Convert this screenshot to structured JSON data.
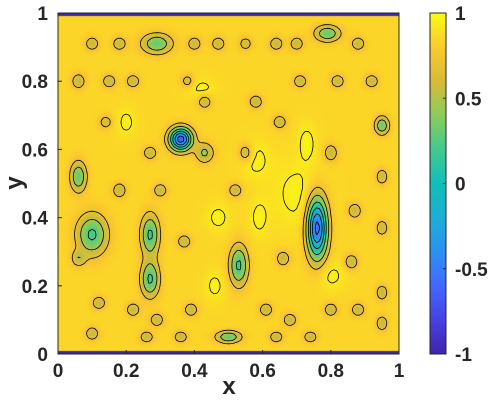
{
  "chart_data": {
    "type": "heatmap",
    "title": "",
    "xlabel": "x",
    "ylabel": "y",
    "xlim": [
      0,
      1
    ],
    "ylim": [
      0,
      1
    ],
    "xticks": [
      "0",
      "0.2",
      "0.4",
      "0.6",
      "0.8",
      "1"
    ],
    "yticks": [
      "0",
      "0.2",
      "0.4",
      "0.6",
      "0.8",
      "1"
    ],
    "colorbar": {
      "range": [
        -1,
        1
      ],
      "ticks": [
        "1",
        "0.5",
        "0",
        "-0.5",
        "-1"
      ],
      "colormap": "parula"
    },
    "background_level": 0.85,
    "contour_levels": [
      -0.75,
      -0.5,
      -0.25,
      0.0,
      0.25,
      0.5,
      0.7,
      0.93
    ],
    "boundary_value": -1,
    "features": [
      {
        "x": 0.1,
        "y": 0.91,
        "value": 0.55,
        "sx": 0.014,
        "sy": 0.014
      },
      {
        "x": 0.18,
        "y": 0.91,
        "value": 0.55,
        "sx": 0.014,
        "sy": 0.014
      },
      {
        "x": 0.29,
        "y": 0.91,
        "value": 0.3,
        "sx": 0.03,
        "sy": 0.02
      },
      {
        "x": 0.4,
        "y": 0.91,
        "value": 0.55,
        "sx": 0.014,
        "sy": 0.014
      },
      {
        "x": 0.47,
        "y": 0.91,
        "value": 0.55,
        "sx": 0.014,
        "sy": 0.014
      },
      {
        "x": 0.55,
        "y": 0.91,
        "value": 0.6,
        "sx": 0.014,
        "sy": 0.014
      },
      {
        "x": 0.64,
        "y": 0.91,
        "value": 0.55,
        "sx": 0.014,
        "sy": 0.014
      },
      {
        "x": 0.7,
        "y": 0.91,
        "value": 0.55,
        "sx": 0.014,
        "sy": 0.014
      },
      {
        "x": 0.79,
        "y": 0.94,
        "value": 0.3,
        "sx": 0.025,
        "sy": 0.016
      },
      {
        "x": 0.88,
        "y": 0.91,
        "value": 0.55,
        "sx": 0.014,
        "sy": 0.014
      },
      {
        "x": 0.06,
        "y": 0.8,
        "value": 0.55,
        "sx": 0.014,
        "sy": 0.016
      },
      {
        "x": 0.15,
        "y": 0.8,
        "value": 0.55,
        "sx": 0.014,
        "sy": 0.014
      },
      {
        "x": 0.22,
        "y": 0.8,
        "value": 0.55,
        "sx": 0.014,
        "sy": 0.014
      },
      {
        "x": 0.38,
        "y": 0.8,
        "value": 0.6,
        "sx": 0.014,
        "sy": 0.014
      },
      {
        "x": 0.71,
        "y": 0.8,
        "value": 0.55,
        "sx": 0.014,
        "sy": 0.014
      },
      {
        "x": 0.82,
        "y": 0.8,
        "value": 0.55,
        "sx": 0.014,
        "sy": 0.014
      },
      {
        "x": 0.92,
        "y": 0.8,
        "value": 0.55,
        "sx": 0.014,
        "sy": 0.014
      },
      {
        "x": 0.14,
        "y": 0.68,
        "value": 0.6,
        "sx": 0.014,
        "sy": 0.014
      },
      {
        "x": 0.43,
        "y": 0.74,
        "value": 0.55,
        "sx": 0.014,
        "sy": 0.014
      },
      {
        "x": 0.58,
        "y": 0.74,
        "value": 0.55,
        "sx": 0.014,
        "sy": 0.014
      },
      {
        "x": 0.65,
        "y": 0.68,
        "value": 0.55,
        "sx": 0.014,
        "sy": 0.014
      },
      {
        "x": 0.36,
        "y": 0.63,
        "value": -0.65,
        "sx": 0.022,
        "sy": 0.022
      },
      {
        "x": 0.43,
        "y": 0.59,
        "value": 0.45,
        "sx": 0.018,
        "sy": 0.02
      },
      {
        "x": 0.55,
        "y": 0.59,
        "value": 0.55,
        "sx": 0.014,
        "sy": 0.018
      },
      {
        "x": 0.27,
        "y": 0.59,
        "value": 0.55,
        "sx": 0.014,
        "sy": 0.014
      },
      {
        "x": 0.8,
        "y": 0.59,
        "value": 0.55,
        "sx": 0.014,
        "sy": 0.018
      },
      {
        "x": 0.06,
        "y": 0.52,
        "value": 0.3,
        "sx": 0.016,
        "sy": 0.03
      },
      {
        "x": 0.18,
        "y": 0.48,
        "value": 0.55,
        "sx": 0.014,
        "sy": 0.016
      },
      {
        "x": 0.3,
        "y": 0.48,
        "value": 0.55,
        "sx": 0.014,
        "sy": 0.014
      },
      {
        "x": 0.52,
        "y": 0.48,
        "value": 0.55,
        "sx": 0.014,
        "sy": 0.014
      },
      {
        "x": 0.87,
        "y": 0.42,
        "value": 0.55,
        "sx": 0.014,
        "sy": 0.016
      },
      {
        "x": 0.1,
        "y": 0.35,
        "value": 0.2,
        "sx": 0.03,
        "sy": 0.04
      },
      {
        "x": 0.27,
        "y": 0.35,
        "value": 0.2,
        "sx": 0.018,
        "sy": 0.04
      },
      {
        "x": 0.76,
        "y": 0.37,
        "value": -0.6,
        "sx": 0.02,
        "sy": 0.06
      },
      {
        "x": 0.37,
        "y": 0.33,
        "value": 0.55,
        "sx": 0.014,
        "sy": 0.014
      },
      {
        "x": 0.53,
        "y": 0.26,
        "value": 0.2,
        "sx": 0.018,
        "sy": 0.04
      },
      {
        "x": 0.27,
        "y": 0.22,
        "value": 0.2,
        "sx": 0.018,
        "sy": 0.035
      },
      {
        "x": 0.06,
        "y": 0.28,
        "value": 0.55,
        "sx": 0.014,
        "sy": 0.016
      },
      {
        "x": 0.66,
        "y": 0.28,
        "value": 0.55,
        "sx": 0.014,
        "sy": 0.016
      },
      {
        "x": 0.86,
        "y": 0.27,
        "value": 0.55,
        "sx": 0.014,
        "sy": 0.016
      },
      {
        "x": 0.95,
        "y": 0.67,
        "value": 0.3,
        "sx": 0.014,
        "sy": 0.018
      },
      {
        "x": 0.95,
        "y": 0.52,
        "value": 0.55,
        "sx": 0.012,
        "sy": 0.016
      },
      {
        "x": 0.95,
        "y": 0.37,
        "value": 0.55,
        "sx": 0.012,
        "sy": 0.016
      },
      {
        "x": 0.95,
        "y": 0.18,
        "value": 0.55,
        "sx": 0.012,
        "sy": 0.016
      },
      {
        "x": 0.95,
        "y": 0.09,
        "value": 0.55,
        "sx": 0.012,
        "sy": 0.016
      },
      {
        "x": 0.12,
        "y": 0.15,
        "value": 0.55,
        "sx": 0.014,
        "sy": 0.014
      },
      {
        "x": 0.22,
        "y": 0.13,
        "value": 0.55,
        "sx": 0.014,
        "sy": 0.014
      },
      {
        "x": 0.29,
        "y": 0.1,
        "value": 0.55,
        "sx": 0.014,
        "sy": 0.014
      },
      {
        "x": 0.39,
        "y": 0.13,
        "value": 0.55,
        "sx": 0.014,
        "sy": 0.014
      },
      {
        "x": 0.61,
        "y": 0.13,
        "value": 0.55,
        "sx": 0.014,
        "sy": 0.014
      },
      {
        "x": 0.68,
        "y": 0.1,
        "value": 0.55,
        "sx": 0.014,
        "sy": 0.014
      },
      {
        "x": 0.8,
        "y": 0.13,
        "value": 0.55,
        "sx": 0.014,
        "sy": 0.014
      },
      {
        "x": 0.88,
        "y": 0.13,
        "value": 0.55,
        "sx": 0.014,
        "sy": 0.014
      },
      {
        "x": 0.1,
        "y": 0.06,
        "value": 0.55,
        "sx": 0.014,
        "sy": 0.014
      },
      {
        "x": 0.26,
        "y": 0.05,
        "value": 0.55,
        "sx": 0.014,
        "sy": 0.012
      },
      {
        "x": 0.36,
        "y": 0.05,
        "value": 0.55,
        "sx": 0.014,
        "sy": 0.012
      },
      {
        "x": 0.5,
        "y": 0.05,
        "value": 0.3,
        "sx": 0.025,
        "sy": 0.012
      },
      {
        "x": 0.64,
        "y": 0.05,
        "value": 0.55,
        "sx": 0.014,
        "sy": 0.012
      },
      {
        "x": 0.74,
        "y": 0.05,
        "value": 0.55,
        "sx": 0.014,
        "sy": 0.012
      },
      {
        "x": 0.42,
        "y": 0.78,
        "value": 0.96,
        "sx": 0.03,
        "sy": 0.02
      },
      {
        "x": 0.7,
        "y": 0.47,
        "value": 0.96,
        "sx": 0.05,
        "sy": 0.07
      },
      {
        "x": 0.58,
        "y": 0.57,
        "value": 0.96,
        "sx": 0.03,
        "sy": 0.04
      },
      {
        "x": 0.47,
        "y": 0.4,
        "value": 0.96,
        "sx": 0.025,
        "sy": 0.03
      },
      {
        "x": 0.8,
        "y": 0.23,
        "value": 0.96,
        "sx": 0.03,
        "sy": 0.03
      },
      {
        "x": 0.46,
        "y": 0.2,
        "value": 0.96,
        "sx": 0.02,
        "sy": 0.03
      },
      {
        "x": 0.59,
        "y": 0.4,
        "value": 0.96,
        "sx": 0.02,
        "sy": 0.04
      },
      {
        "x": 0.2,
        "y": 0.68,
        "value": 0.96,
        "sx": 0.02,
        "sy": 0.03
      },
      {
        "x": 0.73,
        "y": 0.62,
        "value": 0.96,
        "sx": 0.02,
        "sy": 0.04
      }
    ]
  }
}
